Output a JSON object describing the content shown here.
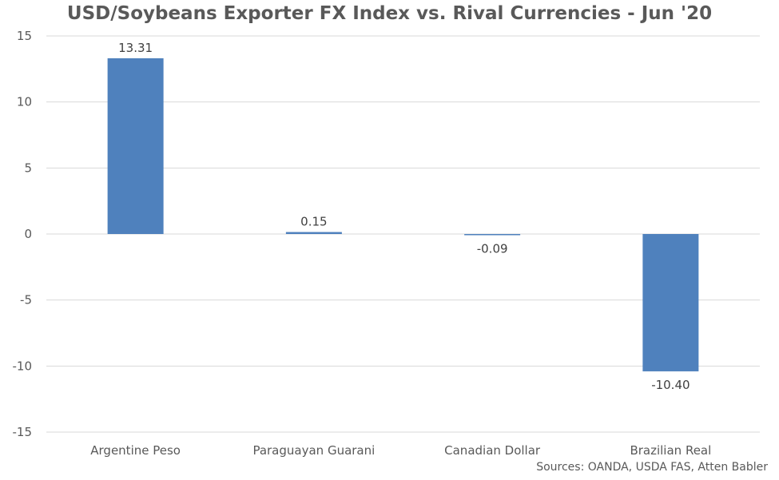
{
  "chart_data": {
    "type": "bar",
    "title": "USD/Soybeans Exporter FX Index vs. Rival Currencies - Jun '20",
    "categories": [
      "Argentine Peso",
      "Paraguayan Guarani",
      "Canadian Dollar",
      "Brazilian Real"
    ],
    "values": [
      13.31,
      0.15,
      -0.09,
      -10.4
    ],
    "data_labels": [
      "13.31",
      "0.15",
      "-0.09",
      "-10.40"
    ],
    "ylim": [
      -15,
      15
    ],
    "yticks": [
      15,
      10,
      5,
      0,
      -5,
      -10,
      -15
    ],
    "xlabel": "",
    "ylabel": "",
    "grid": true,
    "legend": "none",
    "bar_color": "#4f81bd",
    "source": "Sources: OANDA, USDA FAS, Atten Babler"
  }
}
